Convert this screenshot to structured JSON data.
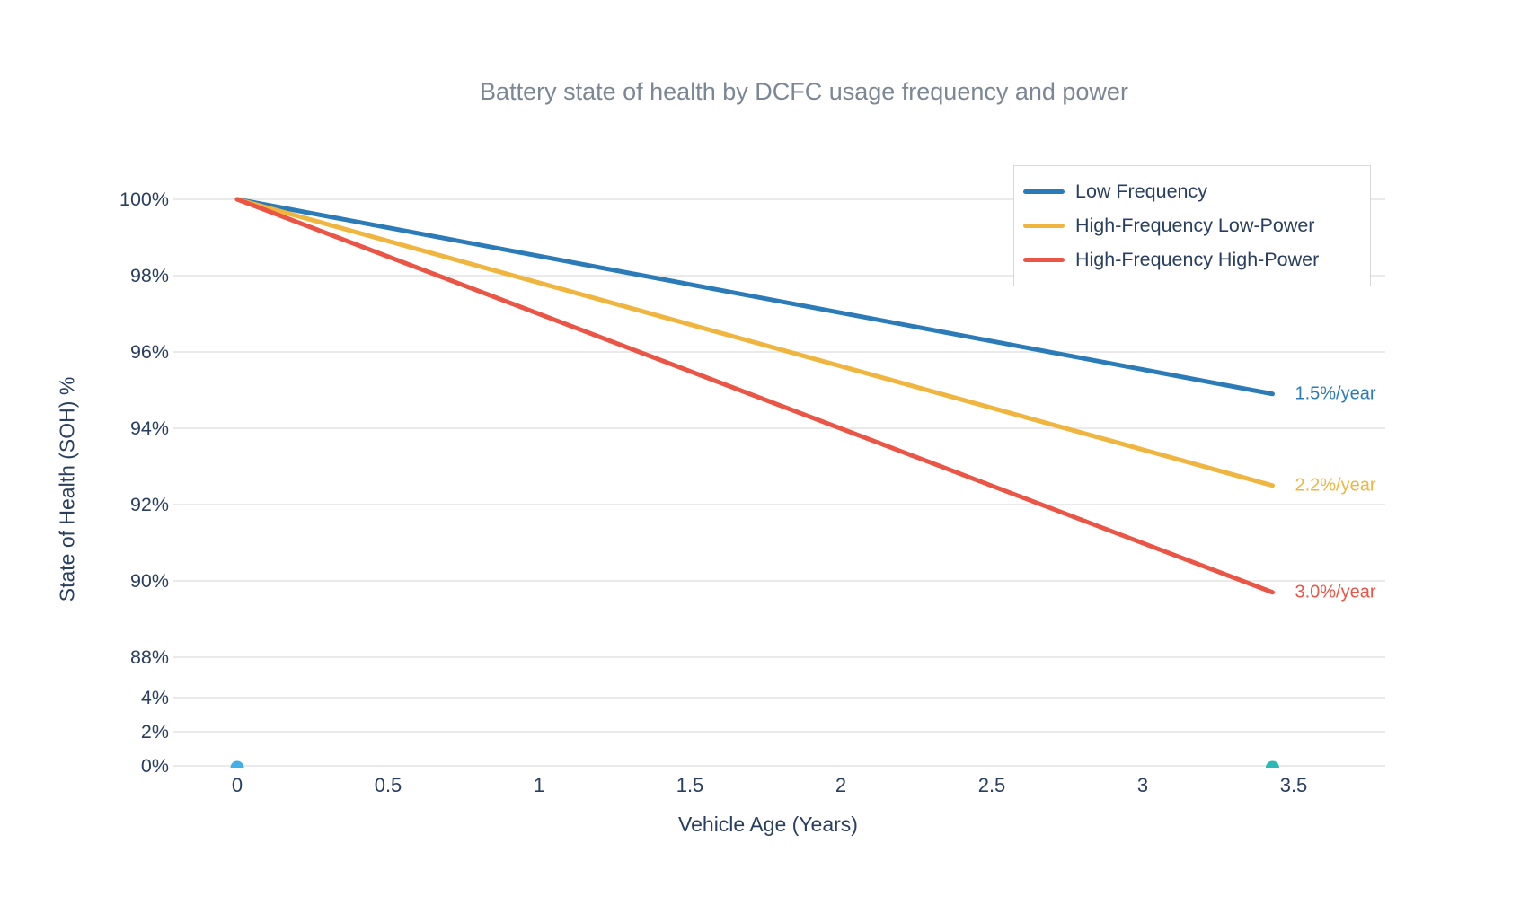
{
  "chart_data": {
    "type": "line",
    "title": "Battery state of health by DCFC usage frequency and power",
    "xlabel": "Vehicle Age (Years)",
    "ylabel": "State of Health (SOH) %",
    "x_axis": {
      "tick_values": [
        0,
        0.5,
        1,
        1.5,
        2,
        2.5,
        3,
        3.5
      ],
      "tick_labels": [
        "0",
        "0.5",
        "1",
        "1.5",
        "2",
        "2.5",
        "3",
        "3.5"
      ],
      "range": [
        -0.21,
        3.8
      ]
    },
    "y_axis": {
      "tick_values": [
        100,
        98,
        96,
        94,
        92,
        90,
        88,
        4,
        2,
        0
      ],
      "tick_labels": [
        "100%",
        "98%",
        "96%",
        "94%",
        "92%",
        "90%",
        "88%",
        "4%",
        "2%",
        "0%"
      ],
      "broken_axis_gap": "axis is discontinuous between 4% and 88%"
    },
    "grid": true,
    "legend_position": "top-right",
    "series": [
      {
        "name": "Low Frequency",
        "color": "#2b7bb9",
        "x": [
          0,
          3.43
        ],
        "y": [
          100,
          94.9
        ],
        "annotation": "1.5%/year",
        "rate_pct_per_year": 1.5
      },
      {
        "name": "High-Frequency Low-Power",
        "color": "#f0b53f",
        "x": [
          0,
          3.43
        ],
        "y": [
          100,
          92.5
        ],
        "annotation": "2.2%/year",
        "rate_pct_per_year": 2.2
      },
      {
        "name": "High-Frequency High-Power",
        "color": "#ea5545",
        "x": [
          0,
          3.43
        ],
        "y": [
          100,
          89.7
        ],
        "annotation": "3.0%/year",
        "rate_pct_per_year": 3.0
      }
    ],
    "markers": [
      {
        "x": 0,
        "y": 0,
        "color": "#41b0e4"
      },
      {
        "x": 3.43,
        "y": 0,
        "color": "#2cb8b4"
      }
    ]
  },
  "palette": {
    "background": "#ffffff",
    "grid": "#e3e3e3",
    "tick_text": "#2a3f5f",
    "title_text": "#7b8794",
    "legend_border": "#d9d9d9"
  }
}
